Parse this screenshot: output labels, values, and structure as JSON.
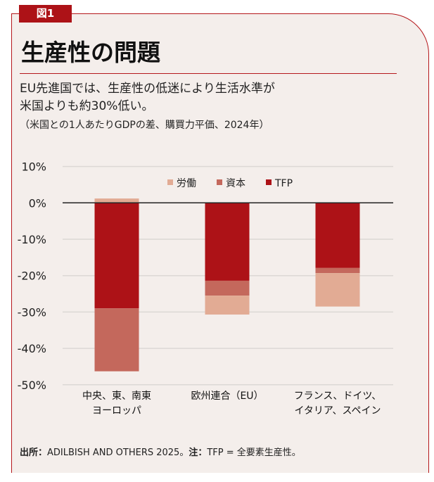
{
  "figure_tag": "図1",
  "title": "生産性の問題",
  "subtitle_lines": [
    "EU先進国では、生産性の低迷により生活水準が",
    "米国よりも約30%低い。"
  ],
  "note": "（米国との1人あたりGDPの差、購買力平価、2024年）",
  "source_label": "出所：",
  "source_text": "ADILBISH AND OTHERS 2025。",
  "footnote_label": "注：",
  "footnote_text": "TFP = 全要素生産性。",
  "chart_data": {
    "type": "bar",
    "stacked": true,
    "categories": [
      [
        "中央、東、南東",
        "ヨーロッパ"
      ],
      [
        "欧州連合（EU）"
      ],
      [
        "フランス、ドイツ、",
        "イタリア、スペイン"
      ]
    ],
    "series": [
      {
        "name": "労働",
        "color": "#e2ab94",
        "values": [
          1.2,
          -5.2,
          -9.2
        ]
      },
      {
        "name": "資本",
        "color": "#c4685c",
        "values": [
          -17.3,
          -4.1,
          -1.4
        ]
      },
      {
        "name": "TFP",
        "color": "#ad1217",
        "values": [
          -29.0,
          -21.4,
          -17.9
        ]
      }
    ],
    "stack_order_negative": [
      "TFP",
      "資本",
      "労働"
    ],
    "yticks": [
      "10%",
      "0%",
      "-10%",
      "-20%",
      "-30%",
      "-40%",
      "-50%"
    ],
    "ylim": [
      -50,
      10
    ],
    "grid": true,
    "legend_position": "top-center"
  }
}
